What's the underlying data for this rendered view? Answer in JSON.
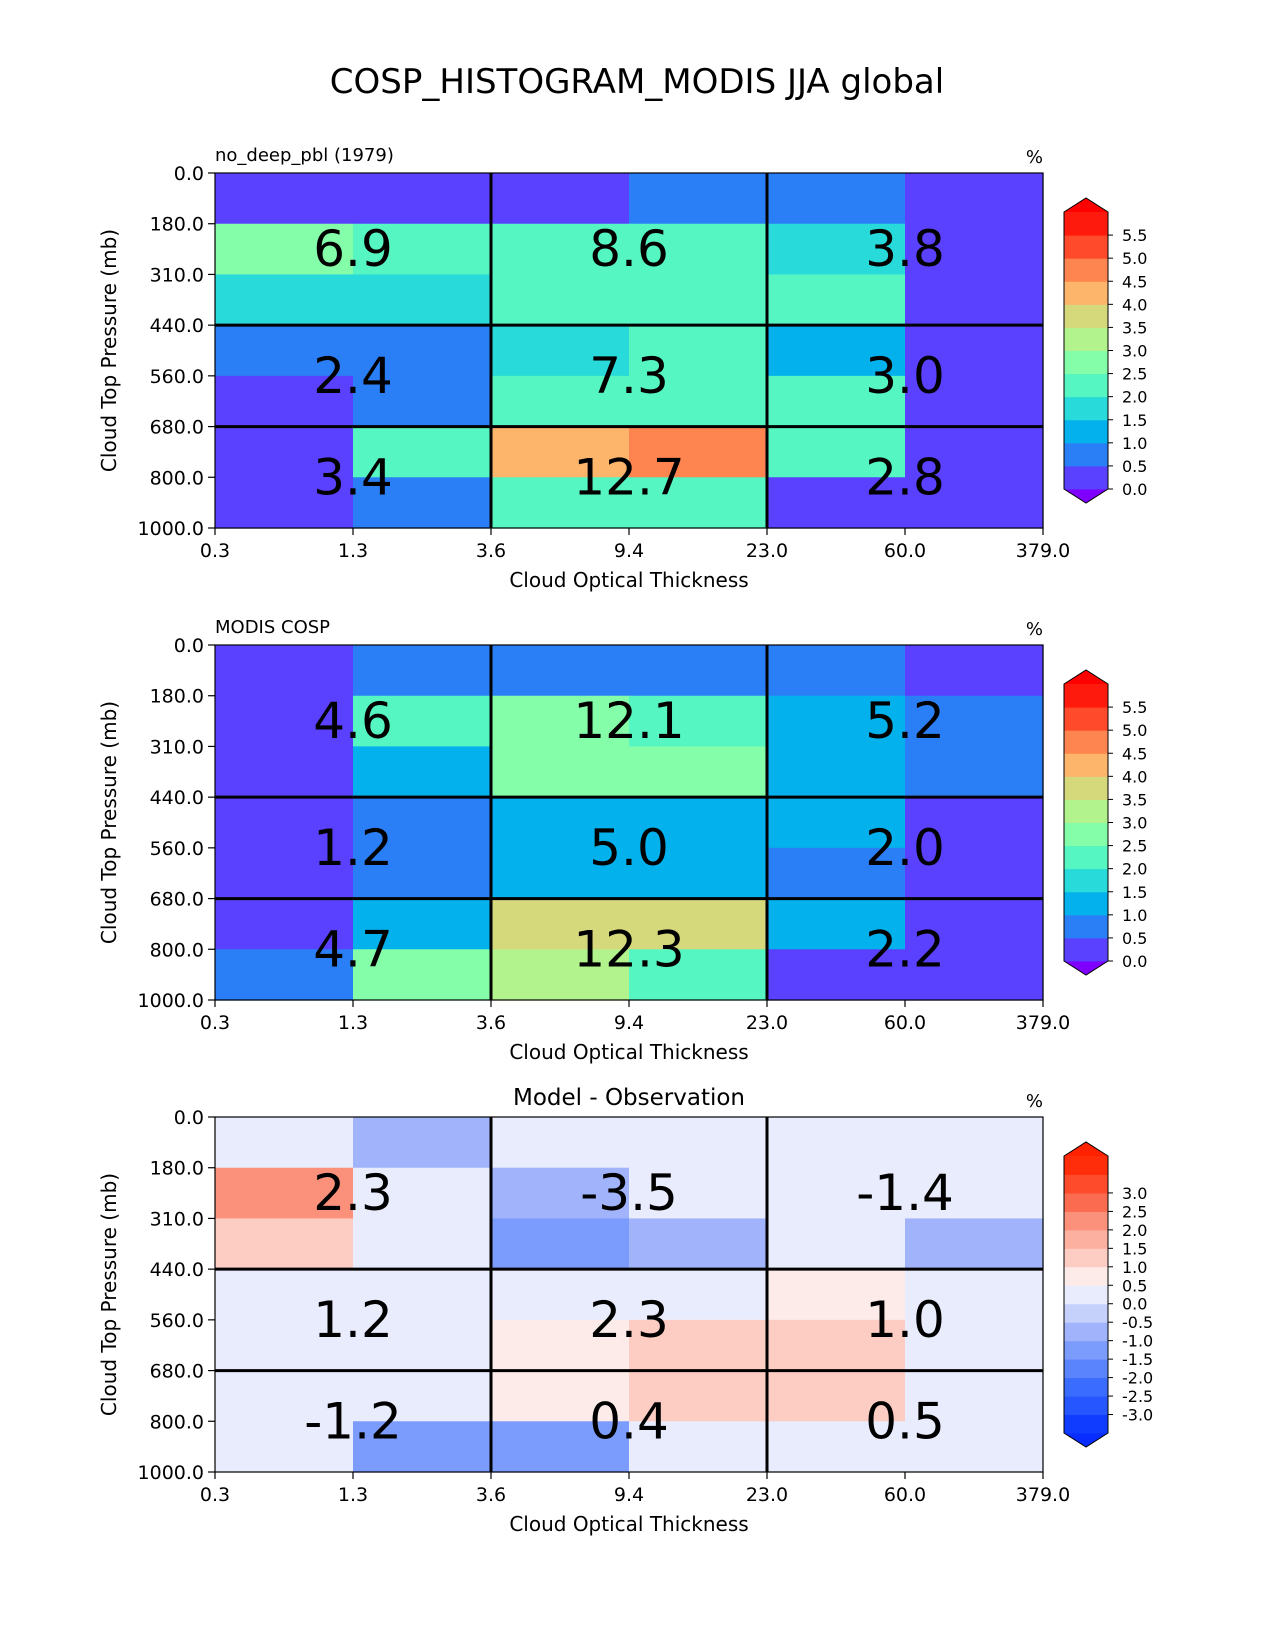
{
  "figure_title": "COSP_HISTOGRAM_MODIS JJA global",
  "chart_data": [
    {
      "type": "heatmap",
      "panel_title_left": "no_deep_pbl (1979)",
      "panel_title_center": "",
      "units": "%",
      "xlabel": "Cloud Optical Thickness",
      "ylabel": "Cloud Top Pressure (mb)",
      "x_ticks": [
        "0.3",
        "1.3",
        "3.6",
        "9.4",
        "23.0",
        "60.0",
        "379.0"
      ],
      "y_ticks": [
        "0.0",
        "180.0",
        "310.0",
        "440.0",
        "560.0",
        "680.0",
        "800.0",
        "1000.0"
      ],
      "cells": [
        [
          0.0,
          0.0,
          0.0,
          0.8,
          0.8,
          0.0
        ],
        [
          2.9,
          2.2,
          2.2,
          2.3,
          1.6,
          0.0
        ],
        [
          1.6,
          1.7,
          2.2,
          2.4,
          2.2,
          0.0
        ],
        [
          0.8,
          0.8,
          1.6,
          2.1,
          1.2,
          0.0
        ],
        [
          0.3,
          0.8,
          2.4,
          2.3,
          2.0,
          0.0
        ],
        [
          0.0,
          2.0,
          4.2,
          4.9,
          2.3,
          0.0
        ],
        [
          0.0,
          0.9,
          2.2,
          2.2,
          0.0,
          0.0
        ]
      ],
      "block_sums": [
        [
          "6.9",
          "8.6",
          "3.8"
        ],
        [
          "2.4",
          "7.3",
          "3.0"
        ],
        [
          "3.4",
          "12.7",
          "2.8"
        ]
      ],
      "colorbar": {
        "ticks": [
          "0.0",
          "0.5",
          "1.0",
          "1.5",
          "2.0",
          "2.5",
          "3.0",
          "3.5",
          "4.0",
          "4.5",
          "5.0",
          "5.5"
        ],
        "under_color": "#7f00ff",
        "over_color": "#ff0000",
        "colors": [
          "#5a40ff",
          "#2b7ff6",
          "#03b1ec",
          "#28dad9",
          "#55f6c1",
          "#85fea9",
          "#b3f38e",
          "#d6d97b",
          "#fcb56a",
          "#ff8550",
          "#ff4b2c",
          "#ff1a0e"
        ]
      }
    },
    {
      "type": "heatmap",
      "panel_title_left": "MODIS COSP",
      "panel_title_center": "",
      "units": "%",
      "xlabel": "Cloud Optical Thickness",
      "ylabel": "Cloud Top Pressure (mb)",
      "x_ticks": [
        "0.3",
        "1.3",
        "3.6",
        "9.4",
        "23.0",
        "60.0",
        "379.0"
      ],
      "y_ticks": [
        "0.0",
        "180.0",
        "310.0",
        "440.0",
        "560.0",
        "680.0",
        "800.0",
        "1000.0"
      ],
      "cells": [
        [
          0.0,
          0.8,
          0.8,
          0.8,
          0.8,
          0.0
        ],
        [
          0.0,
          2.0,
          2.8,
          2.1,
          1.4,
          0.8
        ],
        [
          0.0,
          1.4,
          2.7,
          2.8,
          1.4,
          0.8
        ],
        [
          0.0,
          0.8,
          1.3,
          1.3,
          1.2,
          0.0
        ],
        [
          0.0,
          0.7,
          1.3,
          1.3,
          0.8,
          0.0
        ],
        [
          0.0,
          1.4,
          3.8,
          3.8,
          1.2,
          0.0
        ],
        [
          0.7,
          2.7,
          3.2,
          2.0,
          0.0,
          0.0
        ]
      ],
      "block_sums": [
        [
          "4.6",
          "12.1",
          "5.2"
        ],
        [
          "1.2",
          "5.0",
          "2.0"
        ],
        [
          "4.7",
          "12.3",
          "2.2"
        ]
      ],
      "colorbar": {
        "ticks": [
          "0.0",
          "0.5",
          "1.0",
          "1.5",
          "2.0",
          "2.5",
          "3.0",
          "3.5",
          "4.0",
          "4.5",
          "5.0",
          "5.5"
        ],
        "under_color": "#7f00ff",
        "over_color": "#ff0000",
        "colors": [
          "#5a40ff",
          "#2b7ff6",
          "#03b1ec",
          "#28dad9",
          "#55f6c1",
          "#85fea9",
          "#b3f38e",
          "#d6d97b",
          "#fcb56a",
          "#ff8550",
          "#ff4b2c",
          "#ff1a0e"
        ]
      }
    },
    {
      "type": "heatmap",
      "panel_title_left": "",
      "panel_title_center": "Model - Observation",
      "units": "%",
      "xlabel": "Cloud Optical Thickness",
      "ylabel": "Cloud Top Pressure (mb)",
      "x_ticks": [
        "0.3",
        "1.3",
        "3.6",
        "9.4",
        "23.0",
        "60.0",
        "379.0"
      ],
      "y_ticks": [
        "0.0",
        "180.0",
        "310.0",
        "440.0",
        "560.0",
        "680.0",
        "800.0",
        "1000.0"
      ],
      "cells": [
        [
          0.0,
          -0.7,
          0.0,
          0.0,
          0.0,
          0.0
        ],
        [
          2.2,
          0.0,
          -0.7,
          0.0,
          0.0,
          0.0
        ],
        [
          1.3,
          0.0,
          -1.1,
          -0.7,
          0.4,
          -0.7
        ],
        [
          0.3,
          0.3,
          0.3,
          0.3,
          0.8,
          0.0
        ],
        [
          0.3,
          0.3,
          0.8,
          1.3,
          1.3,
          0.0
        ],
        [
          0.3,
          0.3,
          0.8,
          1.3,
          1.3,
          0.0
        ],
        [
          0.0,
          -1.3,
          -1.1,
          0.0,
          0.0,
          0.0
        ]
      ],
      "block_sums": [
        [
          "2.3",
          "-3.5",
          "-1.4"
        ],
        [
          "1.2",
          "2.3",
          "1.0"
        ],
        [
          "-1.2",
          "0.4",
          "0.5"
        ]
      ],
      "colorbar": {
        "ticks": [
          "-3.0",
          "-2.5",
          "-2.0",
          "-1.5",
          "-1.0",
          "-0.5",
          "0.0",
          "0.5",
          "1.0",
          "1.5",
          "2.0",
          "2.5",
          "3.0"
        ],
        "under_color": "#0a2dff",
        "over_color": "#ff2200",
        "colors": [
          "#103cff",
          "#2656ff",
          "#3a6cff",
          "#5a84fe",
          "#7b9cfd",
          "#a1b3fb",
          "#c5d1fb",
          "#e8ecfc",
          "#fcebe8",
          "#fdcdc3",
          "#fcb0a0",
          "#fc917b",
          "#fb6b50",
          "#fe4b2b",
          "#ff2d0a"
        ]
      }
    }
  ]
}
